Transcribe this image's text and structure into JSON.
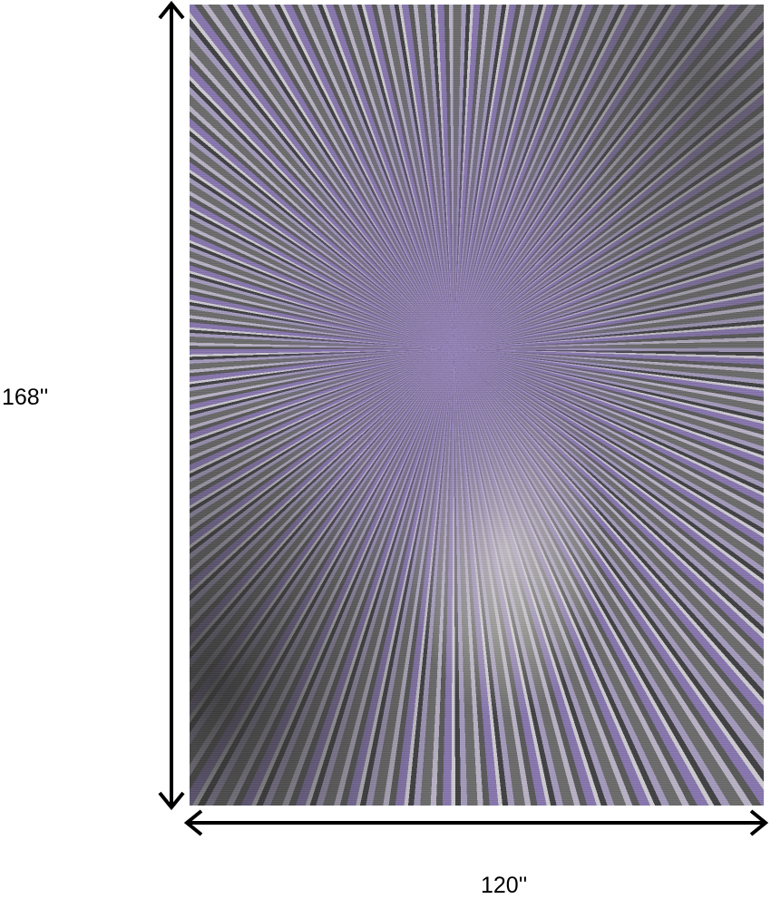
{
  "product": {
    "dimensions": {
      "height_label": "168''",
      "width_label": "120''"
    },
    "colors": {
      "purple": "#8776ae",
      "gray": "#6b6b6b",
      "charcoal": "#3f3f42",
      "ivory": "#cfccd2"
    }
  }
}
